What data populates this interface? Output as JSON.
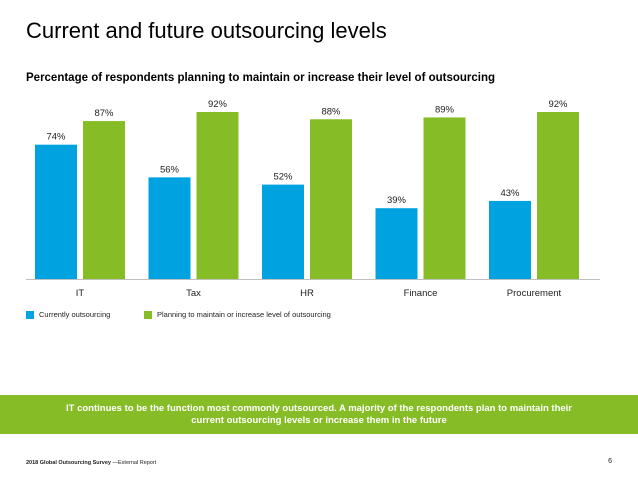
{
  "slide": {
    "title": "Current and future outsourcing levels",
    "page_number": "6"
  },
  "callout": {
    "text": "IT continues to be the function most commonly outsourced.  A majority of the respondents plan to maintain their current outsourcing levels or increase them in the future"
  },
  "footer": {
    "report_name": "2018 Global Outsourcing Survey",
    "report_suffix": " —External Report"
  },
  "colors": {
    "currently": "#00a3e0",
    "planning": "#86bc25",
    "callout_bg": "#86bc25"
  },
  "chart_data": {
    "type": "bar",
    "title": "Percentage of respondents planning to maintain or increase their level of outsourcing",
    "xlabel": "",
    "ylabel": "",
    "ylim": [
      0,
      100
    ],
    "categories": [
      "IT",
      "Tax",
      "HR",
      "Finance",
      "Procurement"
    ],
    "series": [
      {
        "name": "Currently outsourcing",
        "values": [
          74,
          56,
          52,
          39,
          43
        ],
        "labels": [
          "74%",
          "56%",
          "52%",
          "39%",
          "43%"
        ]
      },
      {
        "name": "Planning to maintain or increase level of outsourcing",
        "values": [
          87,
          92,
          88,
          89,
          92
        ],
        "labels": [
          "87%",
          "92%",
          "88%",
          "89%",
          "92%"
        ]
      }
    ],
    "grid": false,
    "legend_position": "bottom-left"
  }
}
